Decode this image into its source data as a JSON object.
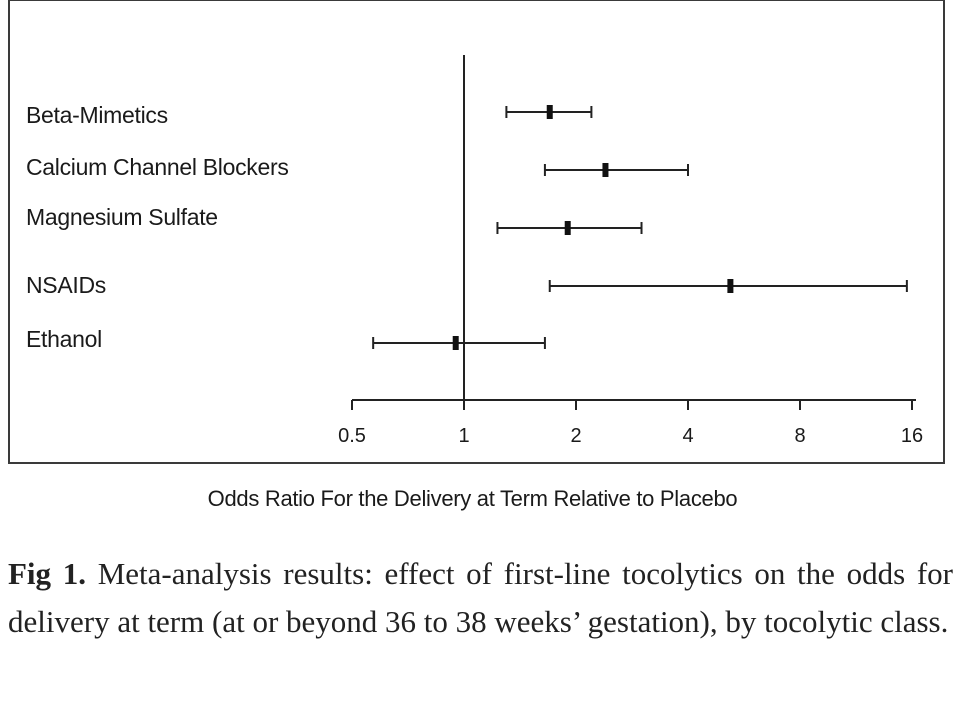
{
  "chart_data": {
    "type": "forest",
    "xlabel": "Odds Ratio For the Delivery at Term Relative to Placebo",
    "scale": "log2",
    "xlim": [
      0.5,
      16
    ],
    "xticks": [
      "0.5",
      "1",
      "2",
      "4",
      "8",
      "16"
    ],
    "reference_line": 1,
    "series": [
      {
        "label": "Beta-Mimetics",
        "estimate": 1.7,
        "lower": 1.3,
        "upper": 2.2
      },
      {
        "label": "Calcium Channel Blockers",
        "estimate": 2.4,
        "lower": 1.65,
        "upper": 4.0
      },
      {
        "label": "Magnesium Sulfate",
        "estimate": 1.9,
        "lower": 1.23,
        "upper": 3.0
      },
      {
        "label": "NSAIDs",
        "estimate": 5.2,
        "lower": 1.7,
        "upper": 15.5
      },
      {
        "label": "Ethanol",
        "estimate": 0.95,
        "lower": 0.57,
        "upper": 1.65
      }
    ]
  },
  "caption": {
    "fig_label": "Fig 1.",
    "text": " Meta-analysis results: effect of first-line tocolytics on the odds for delivery at term (at or beyond 36 to 38 weeks’ gestation), by tocolytic class."
  }
}
